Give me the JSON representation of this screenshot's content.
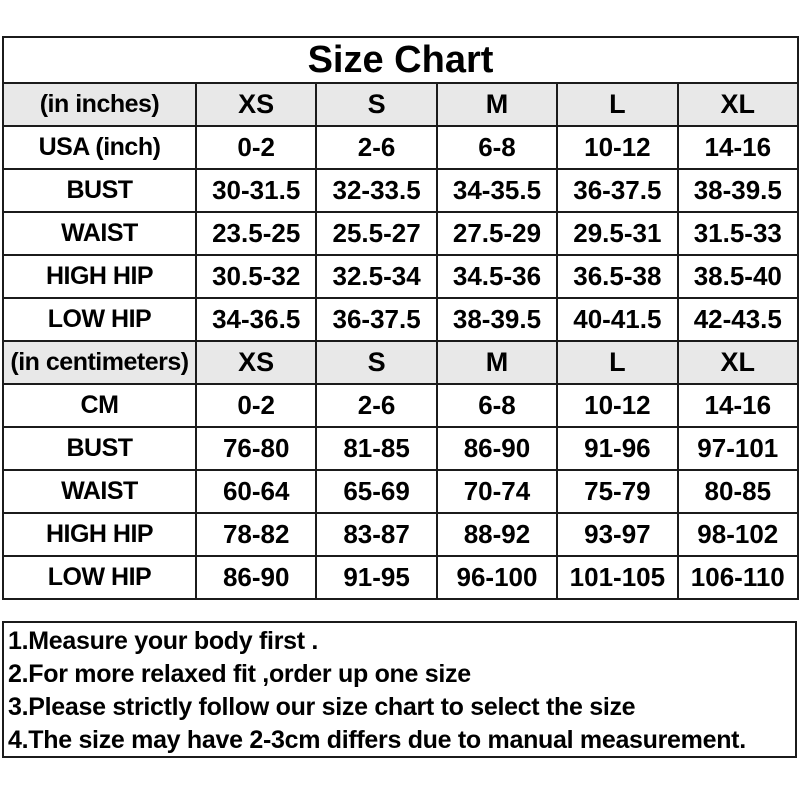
{
  "colors": {
    "page_bg": "#ffffff",
    "row_bg": "#ffffff",
    "header_bg": "#e8e8e8",
    "border": "#1b1b1b",
    "text": "#000000"
  },
  "chart_data": {
    "type": "table",
    "title": "Size Chart",
    "sections": [
      {
        "header_label": "(in inches)",
        "size_headers": [
          "XS",
          "S",
          "M",
          "L",
          "XL"
        ],
        "rows": [
          {
            "label": "USA (inch)",
            "values": [
              "0-2",
              "2-6",
              "6-8",
              "10-12",
              "14-16"
            ]
          },
          {
            "label": "BUST",
            "values": [
              "30-31.5",
              "32-33.5",
              "34-35.5",
              "36-37.5",
              "38-39.5"
            ]
          },
          {
            "label": "WAIST",
            "values": [
              "23.5-25",
              "25.5-27",
              "27.5-29",
              "29.5-31",
              "31.5-33"
            ]
          },
          {
            "label": "HIGH HIP",
            "values": [
              "30.5-32",
              "32.5-34",
              "34.5-36",
              "36.5-38",
              "38.5-40"
            ]
          },
          {
            "label": "LOW HIP",
            "values": [
              "34-36.5",
              "36-37.5",
              "38-39.5",
              "40-41.5",
              "42-43.5"
            ]
          }
        ]
      },
      {
        "header_label": "(in centimeters)",
        "size_headers": [
          "XS",
          "S",
          "M",
          "L",
          "XL"
        ],
        "rows": [
          {
            "label": "CM",
            "values": [
              "0-2",
              "2-6",
              "6-8",
              "10-12",
              "14-16"
            ]
          },
          {
            "label": "BUST",
            "values": [
              "76-80",
              "81-85",
              "86-90",
              "91-96",
              "97-101"
            ]
          },
          {
            "label": "WAIST",
            "values": [
              "60-64",
              "65-69",
              "70-74",
              "75-79",
              "80-85"
            ]
          },
          {
            "label": "HIGH HIP",
            "values": [
              "78-82",
              "83-87",
              "88-92",
              "93-97",
              "98-102"
            ]
          },
          {
            "label": "LOW HIP",
            "values": [
              "86-90",
              "91-95",
              "96-100",
              "101-105",
              "106-110"
            ]
          }
        ]
      }
    ],
    "notes": [
      "1.Measure your body first .",
      "2.For more relaxed fit ,order up one size",
      "3.Please strictly follow our size chart to select the size",
      "4.The size may have 2-3cm differs due to manual measurement."
    ]
  }
}
